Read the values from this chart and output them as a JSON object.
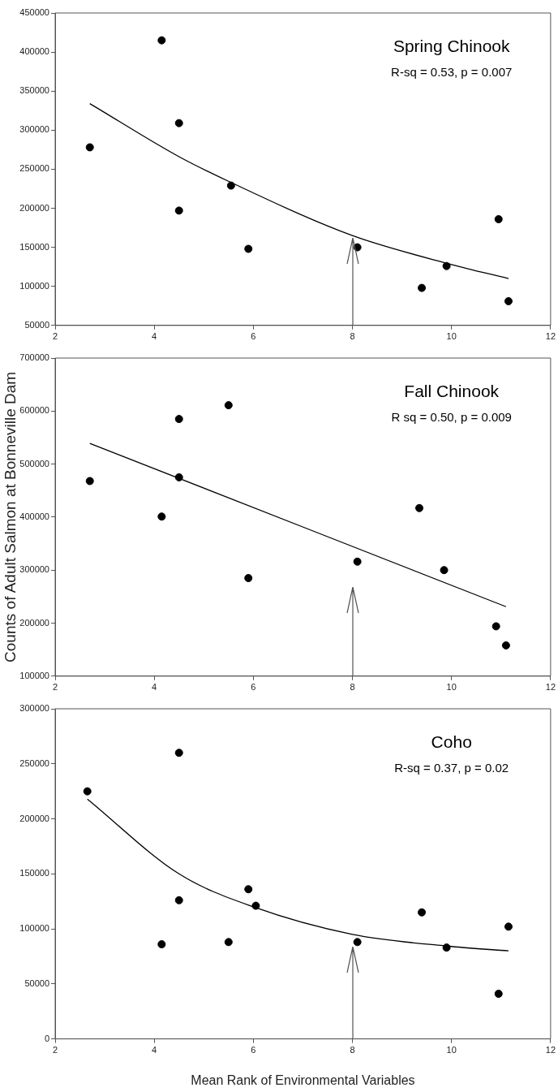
{
  "chart_data": [
    {
      "type": "scatter",
      "title": "Spring Chinook",
      "subtitle": "R-sq = 0.53, p = 0.007",
      "xlim": [
        2,
        12
      ],
      "xticks": [
        2,
        4,
        6,
        8,
        10,
        12
      ],
      "ylim": [
        50000,
        450000
      ],
      "yticks": [
        50000,
        100000,
        150000,
        200000,
        250000,
        300000,
        350000,
        400000,
        450000
      ],
      "grid": false,
      "legend": false,
      "series": [
        {
          "type": "scatter",
          "color": "#000000",
          "marker": "circle",
          "x": [
            2.7,
            4.15,
            4.5,
            4.5,
            5.55,
            5.9,
            8.1,
            9.4,
            9.9,
            10.95,
            11.15
          ],
          "values": [
            278000,
            415000,
            309000,
            197000,
            229000,
            148000,
            150000,
            98000,
            126000,
            186000,
            81000
          ]
        },
        {
          "type": "line",
          "color": "#000000",
          "marker": "none",
          "x": [
            2.7,
            4.5,
            5.55,
            8,
            10,
            11.15
          ],
          "values": [
            334000,
            266000,
            233000,
            165000,
            128000,
            110000
          ]
        }
      ]
    },
    {
      "type": "scatter",
      "title": "Fall Chinook",
      "subtitle": "R sq = 0.50, p = 0.009",
      "ylabel": "Counts of Adult Salmon at Bonneville Dam",
      "xlim": [
        2,
        12
      ],
      "xticks": [
        2,
        4,
        6,
        8,
        10,
        12
      ],
      "ylim": [
        100000,
        700000
      ],
      "yticks": [
        100000,
        200000,
        300000,
        400000,
        500000,
        600000,
        700000
      ],
      "grid": false,
      "legend": false,
      "series": [
        {
          "type": "scatter",
          "color": "#000000",
          "marker": "circle",
          "x": [
            2.7,
            4.15,
            4.5,
            4.5,
            5.5,
            5.9,
            8.1,
            9.35,
            9.85,
            10.9,
            11.1
          ],
          "values": [
            468000,
            401000,
            585000,
            475000,
            611000,
            285000,
            316000,
            417000,
            300000,
            194000,
            158000
          ]
        },
        {
          "type": "line",
          "color": "#000000",
          "marker": "none",
          "x": [
            2.7,
            11.1
          ],
          "values": [
            539000,
            231000
          ]
        }
      ]
    },
    {
      "type": "scatter",
      "title": "Coho",
      "subtitle": "R-sq = 0.37, p = 0.02",
      "xlabel": "Mean Rank of Environmental Variables",
      "xlim": [
        2,
        12
      ],
      "xticks": [
        2,
        4,
        6,
        8,
        10,
        12
      ],
      "ylim": [
        0,
        300000
      ],
      "yticks": [
        0,
        50000,
        100000,
        150000,
        200000,
        250000,
        300000
      ],
      "grid": false,
      "legend": false,
      "series": [
        {
          "type": "scatter",
          "color": "#000000",
          "marker": "circle",
          "x": [
            2.65,
            4.5,
            4.5,
            4.15,
            5.5,
            5.9,
            6.05,
            8.1,
            9.4,
            9.9,
            10.95,
            11.15
          ],
          "values": [
            225000,
            260000,
            126000,
            86000,
            88000,
            136000,
            121000,
            88000,
            115000,
            83000,
            41000,
            102000
          ]
        },
        {
          "type": "line",
          "color": "#000000",
          "marker": "none",
          "x": [
            2.65,
            4.5,
            6,
            8,
            10,
            11.15
          ],
          "values": [
            218000,
            150000,
            120000,
            95000,
            84000,
            80000
          ]
        }
      ]
    }
  ]
}
